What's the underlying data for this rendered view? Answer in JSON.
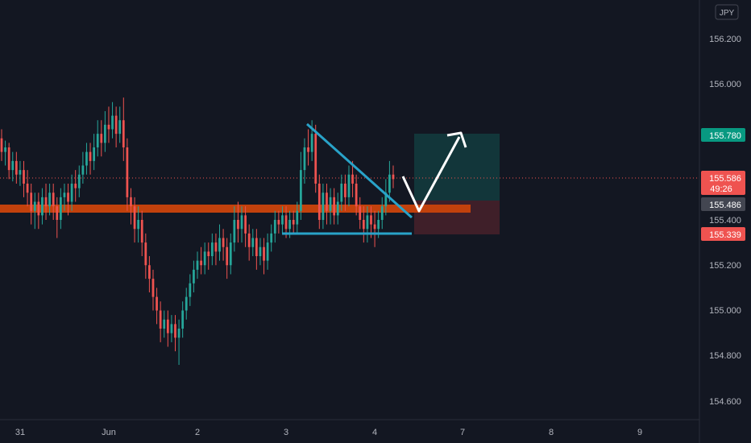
{
  "currency_badge": "JPY",
  "y_ticks": [
    "156.200",
    "156.000",
    "155.200",
    "155.000",
    "154.800",
    "154.600"
  ],
  "hidden_tick": "155.400",
  "x_ticks": [
    "31",
    "Jun",
    "2",
    "3",
    "4",
    "7",
    "8",
    "9"
  ],
  "price_tags": {
    "target": "155.780",
    "current": "155.586",
    "countdown": "49:26",
    "entry": "155.486",
    "stop": "155.339"
  },
  "colors": {
    "background": "#131722",
    "up": "#26a69a",
    "down": "#ef5350",
    "zone": "#c2410c",
    "pattern": "#29a3c9",
    "target_zone": "#12363a",
    "stop_zone": "#3f1f29",
    "arrow": "#ffffff"
  },
  "chart_data": {
    "type": "candlestick",
    "symbol_currency": "JPY",
    "x_ticks": [
      "31",
      "Jun",
      "2",
      "3",
      "4",
      "7",
      "8",
      "9"
    ],
    "y_range": [
      154.55,
      156.37
    ],
    "candles": [
      [
        155.76,
        155.7,
        155.8,
        155.66
      ],
      [
        155.7,
        155.72,
        155.75,
        155.64
      ],
      [
        155.72,
        155.62,
        155.74,
        155.58
      ],
      [
        155.62,
        155.66,
        155.7,
        155.57
      ],
      [
        155.66,
        155.6,
        155.7,
        155.56
      ],
      [
        155.6,
        155.62,
        155.66,
        155.55
      ],
      [
        155.62,
        155.56,
        155.66,
        155.5
      ],
      [
        155.56,
        155.52,
        155.62,
        155.46
      ],
      [
        155.52,
        155.44,
        155.56,
        155.38
      ],
      [
        155.44,
        155.48,
        155.52,
        155.36
      ],
      [
        155.48,
        155.42,
        155.52,
        155.36
      ],
      [
        155.42,
        155.5,
        155.54,
        155.38
      ],
      [
        155.5,
        155.46,
        155.56,
        155.4
      ],
      [
        155.46,
        155.52,
        155.56,
        155.42
      ],
      [
        155.52,
        155.46,
        155.56,
        155.4
      ],
      [
        155.46,
        155.4,
        155.5,
        155.32
      ],
      [
        155.4,
        155.5,
        155.54,
        155.36
      ],
      [
        155.5,
        155.52,
        155.56,
        155.44
      ],
      [
        155.52,
        155.48,
        155.56,
        155.42
      ],
      [
        155.48,
        155.56,
        155.6,
        155.44
      ],
      [
        155.56,
        155.54,
        155.62,
        155.48
      ],
      [
        155.54,
        155.6,
        155.64,
        155.5
      ],
      [
        155.6,
        155.64,
        155.7,
        155.56
      ],
      [
        155.64,
        155.7,
        155.74,
        155.6
      ],
      [
        155.7,
        155.66,
        155.74,
        155.6
      ],
      [
        155.66,
        155.72,
        155.78,
        155.62
      ],
      [
        155.72,
        155.78,
        155.84,
        155.68
      ],
      [
        155.78,
        155.74,
        155.84,
        155.68
      ],
      [
        155.74,
        155.82,
        155.88,
        155.7
      ],
      [
        155.82,
        155.8,
        155.9,
        155.74
      ],
      [
        155.8,
        155.86,
        155.92,
        155.76
      ],
      [
        155.86,
        155.78,
        155.9,
        155.72
      ],
      [
        155.78,
        155.84,
        155.9,
        155.74
      ],
      [
        155.84,
        155.72,
        155.94,
        155.66
      ],
      [
        155.72,
        155.5,
        155.76,
        155.44
      ],
      [
        155.5,
        155.46,
        155.54,
        155.38
      ],
      [
        155.46,
        155.36,
        155.5,
        155.3
      ],
      [
        155.36,
        155.4,
        155.46,
        155.3
      ],
      [
        155.4,
        155.3,
        155.44,
        155.24
      ],
      [
        155.3,
        155.2,
        155.34,
        155.14
      ],
      [
        155.2,
        155.14,
        155.24,
        155.08
      ],
      [
        155.14,
        155.06,
        155.18,
        155.0
      ],
      [
        155.06,
        155.0,
        155.1,
        154.94
      ],
      [
        155.0,
        154.92,
        155.04,
        154.86
      ],
      [
        154.92,
        154.96,
        155.0,
        154.88
      ],
      [
        154.96,
        154.9,
        155.0,
        154.84
      ],
      [
        154.9,
        154.94,
        154.98,
        154.86
      ],
      [
        154.94,
        154.88,
        154.98,
        154.82
      ],
      [
        154.88,
        154.92,
        154.96,
        154.76
      ],
      [
        154.92,
        155.0,
        155.04,
        154.88
      ],
      [
        155.0,
        155.06,
        155.1,
        154.96
      ],
      [
        155.06,
        155.12,
        155.16,
        155.02
      ],
      [
        155.12,
        155.18,
        155.22,
        155.08
      ],
      [
        155.18,
        155.22,
        155.26,
        155.14
      ],
      [
        155.22,
        155.2,
        155.28,
        155.16
      ],
      [
        155.2,
        155.26,
        155.3,
        155.16
      ],
      [
        155.26,
        155.24,
        155.3,
        155.18
      ],
      [
        155.24,
        155.3,
        155.34,
        155.2
      ],
      [
        155.3,
        155.26,
        155.34,
        155.2
      ],
      [
        155.26,
        155.32,
        155.38,
        155.22
      ],
      [
        155.32,
        155.28,
        155.36,
        155.22
      ],
      [
        155.28,
        155.2,
        155.32,
        155.14
      ],
      [
        155.2,
        155.3,
        155.34,
        155.16
      ],
      [
        155.3,
        155.4,
        155.46,
        155.26
      ],
      [
        155.4,
        155.36,
        155.48,
        155.3
      ],
      [
        155.36,
        155.42,
        155.46,
        155.3
      ],
      [
        155.42,
        155.34,
        155.46,
        155.28
      ],
      [
        155.34,
        155.28,
        155.38,
        155.22
      ],
      [
        155.28,
        155.32,
        155.36,
        155.24
      ],
      [
        155.32,
        155.24,
        155.36,
        155.18
      ],
      [
        155.24,
        155.28,
        155.32,
        155.2
      ],
      [
        155.28,
        155.22,
        155.32,
        155.16
      ],
      [
        155.22,
        155.3,
        155.34,
        155.18
      ],
      [
        155.3,
        155.34,
        155.38,
        155.26
      ],
      [
        155.34,
        155.4,
        155.44,
        155.3
      ],
      [
        155.4,
        155.38,
        155.44,
        155.34
      ],
      [
        155.38,
        155.42,
        155.46,
        155.34
      ],
      [
        155.42,
        155.36,
        155.46,
        155.32
      ],
      [
        155.36,
        155.4,
        155.44,
        155.32
      ],
      [
        155.4,
        155.38,
        155.44,
        155.34
      ],
      [
        155.38,
        155.44,
        155.48,
        155.34
      ],
      [
        155.44,
        155.62,
        155.7,
        155.4
      ],
      [
        155.62,
        155.72,
        155.76,
        155.56
      ],
      [
        155.72,
        155.7,
        155.8,
        155.64
      ],
      [
        155.7,
        155.78,
        155.84,
        155.66
      ],
      [
        155.78,
        155.56,
        155.82,
        155.52
      ],
      [
        155.56,
        155.4,
        155.6,
        155.36
      ],
      [
        155.4,
        155.52,
        155.56,
        155.36
      ],
      [
        155.52,
        155.44,
        155.56,
        155.38
      ],
      [
        155.44,
        155.5,
        155.54,
        155.38
      ],
      [
        155.5,
        155.42,
        155.54,
        155.38
      ],
      [
        155.42,
        155.48,
        155.52,
        155.38
      ],
      [
        155.48,
        155.56,
        155.6,
        155.44
      ],
      [
        155.56,
        155.5,
        155.6,
        155.44
      ],
      [
        155.5,
        155.6,
        155.64,
        155.46
      ],
      [
        155.6,
        155.56,
        155.66,
        155.5
      ],
      [
        155.56,
        155.46,
        155.6,
        155.42
      ],
      [
        155.46,
        155.4,
        155.5,
        155.36
      ],
      [
        155.4,
        155.36,
        155.46,
        155.3
      ],
      [
        155.36,
        155.42,
        155.46,
        155.3
      ],
      [
        155.42,
        155.38,
        155.46,
        155.32
      ],
      [
        155.38,
        155.36,
        155.44,
        155.28
      ],
      [
        155.36,
        155.4,
        155.44,
        155.32
      ],
      [
        155.4,
        155.46,
        155.5,
        155.36
      ],
      [
        155.46,
        155.52,
        155.58,
        155.42
      ],
      [
        155.52,
        155.6,
        155.66,
        155.48
      ],
      [
        155.6,
        155.58,
        155.64,
        155.54
      ]
    ],
    "annotations": {
      "support_zone_price": 155.45,
      "descending_trendline": [
        [
          155.82,
          155.42
        ]
      ],
      "horizontal_support": 155.35,
      "entry": 155.486,
      "target": 155.78,
      "stop": 155.339,
      "current_price": 155.586
    },
    "grid": false
  }
}
